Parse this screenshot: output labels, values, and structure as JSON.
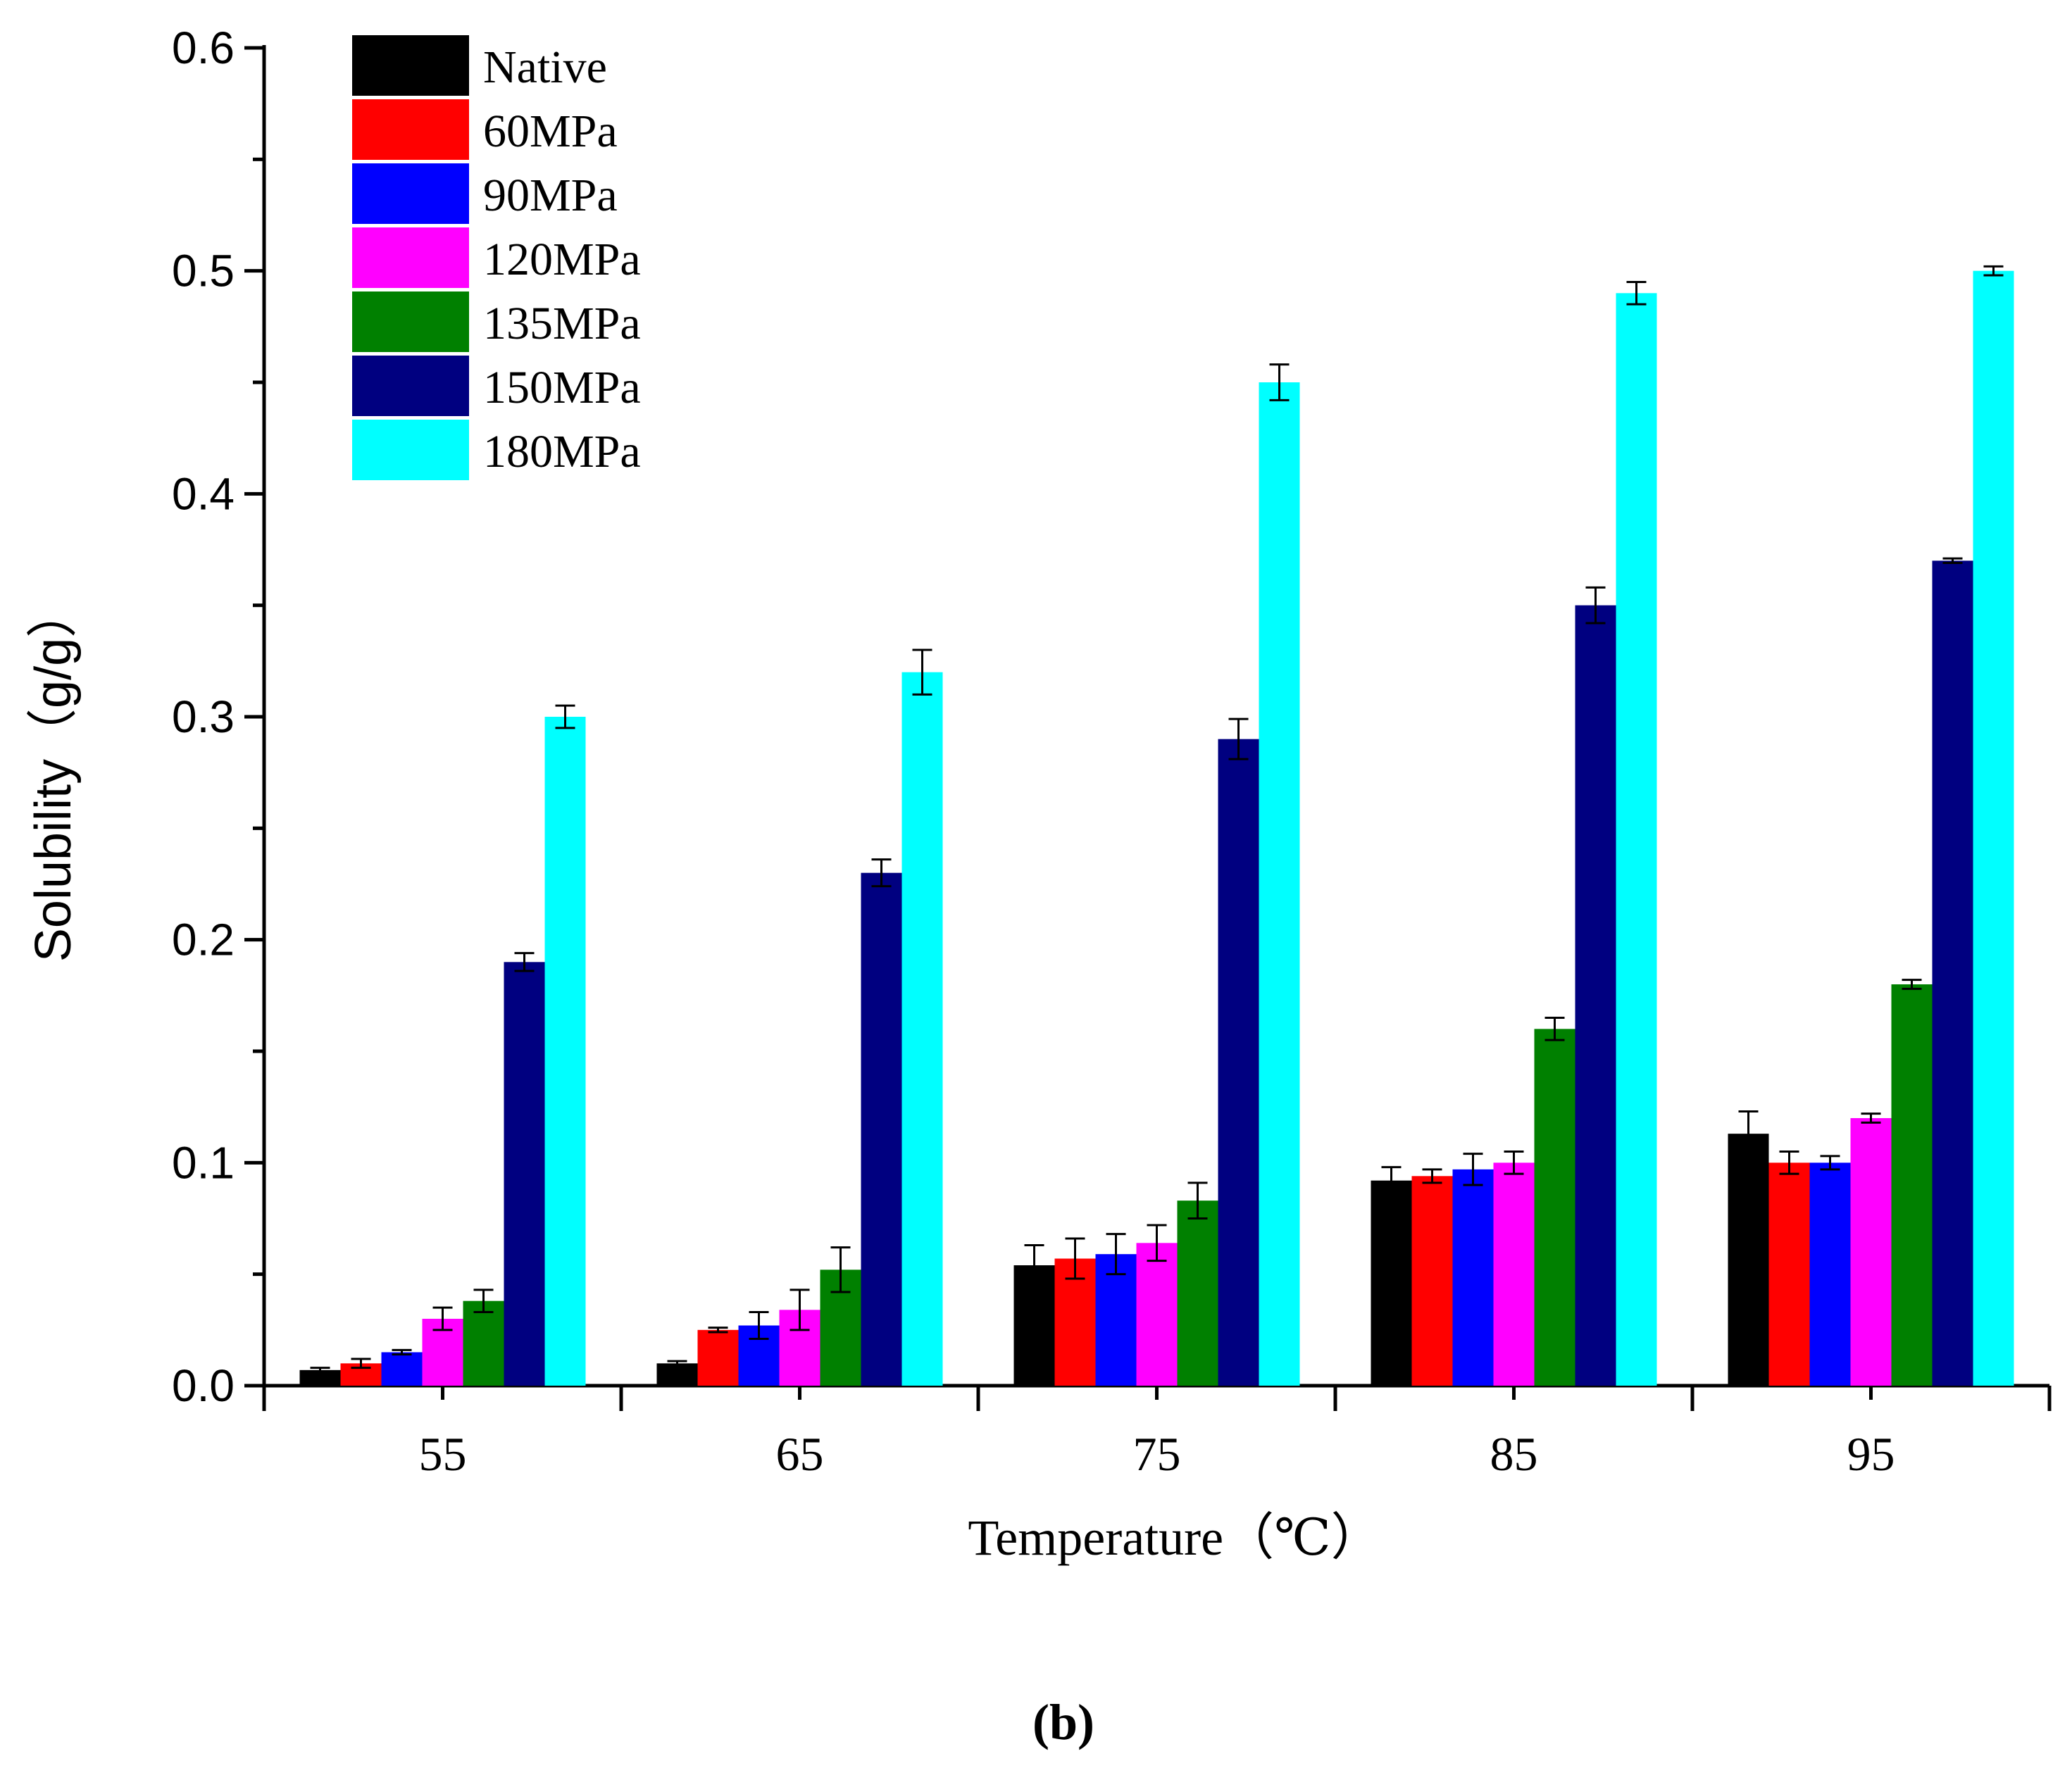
{
  "chart_data": {
    "type": "bar",
    "title": "",
    "xlabel": "Temperature（℃）",
    "ylabel": "Solubility（g/g）",
    "caption": "(b)",
    "categories": [
      "55",
      "65",
      "75",
      "85",
      "95"
    ],
    "ylim": [
      0.0,
      0.6
    ],
    "yticks": [
      "0.0",
      "0.1",
      "0.2",
      "0.3",
      "0.4",
      "0.5",
      "0.6"
    ],
    "grid": false,
    "legend_position": "top-left",
    "series": [
      {
        "name": "Native",
        "color": "#000000",
        "values": [
          0.007,
          0.01,
          0.054,
          0.092,
          0.113
        ],
        "errors": [
          0.001,
          0.001,
          0.009,
          0.006,
          0.01
        ]
      },
      {
        "name": "60MPa",
        "color": "#ff0000",
        "values": [
          0.01,
          0.025,
          0.057,
          0.094,
          0.1
        ],
        "errors": [
          0.002,
          0.001,
          0.009,
          0.003,
          0.005
        ]
      },
      {
        "name": "90MPa",
        "color": "#0000ff",
        "values": [
          0.015,
          0.027,
          0.059,
          0.097,
          0.1
        ],
        "errors": [
          0.001,
          0.006,
          0.009,
          0.007,
          0.003
        ]
      },
      {
        "name": "120MPa",
        "color": "#ff00ff",
        "values": [
          0.03,
          0.034,
          0.064,
          0.1,
          0.12
        ],
        "errors": [
          0.005,
          0.009,
          0.008,
          0.005,
          0.002
        ]
      },
      {
        "name": "135MPa",
        "color": "#008000",
        "values": [
          0.038,
          0.052,
          0.083,
          0.16,
          0.18
        ],
        "errors": [
          0.005,
          0.01,
          0.008,
          0.005,
          0.002
        ]
      },
      {
        "name": "150MPa",
        "color": "#000080",
        "values": [
          0.19,
          0.23,
          0.29,
          0.35,
          0.37
        ],
        "errors": [
          0.004,
          0.006,
          0.009,
          0.008,
          0.001
        ]
      },
      {
        "name": "180MPa",
        "color": "#00ffff",
        "values": [
          0.3,
          0.32,
          0.45,
          0.49,
          0.5
        ],
        "errors": [
          0.005,
          0.01,
          0.008,
          0.005,
          0.002
        ]
      }
    ]
  }
}
